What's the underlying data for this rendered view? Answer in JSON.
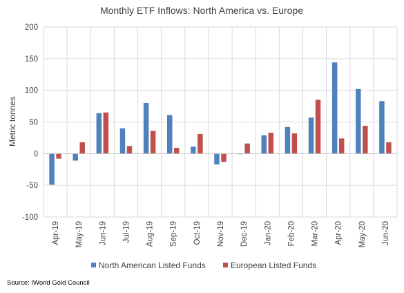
{
  "chart_data": {
    "type": "bar",
    "title": "Monthly  ETF Inflows: North America vs. Europe",
    "ylabel": "Metric tonnes",
    "xlabel": "",
    "ylim": [
      -100,
      200
    ],
    "yticks": [
      -100,
      -50,
      0,
      50,
      100,
      150,
      200
    ],
    "grid": true,
    "legend_position": "bottom",
    "categories": [
      "Apr-19",
      "May-19",
      "Jun-19",
      "Jul-19",
      "Aug-19",
      "Sep-19",
      "Oct-19",
      "Nov-19",
      "Dec-19",
      "Jan-20",
      "Feb-20",
      "Mar-20",
      "Apr-20",
      "May-20",
      "Jun-20"
    ],
    "series": [
      {
        "name": "North American Listed Funds",
        "color": "#4f81bd",
        "values": [
          -49,
          -11,
          64,
          40,
          80,
          61,
          11,
          -17,
          -1,
          29,
          42,
          57,
          144,
          102,
          83
        ]
      },
      {
        "name": "European Listed Funds",
        "color": "#c0504d",
        "values": [
          -8,
          18,
          65,
          12,
          36,
          9,
          31,
          -13,
          16,
          33,
          32,
          85,
          24,
          44,
          18
        ]
      }
    ]
  },
  "footer": {
    "source": "Source: IWorld Gold Council"
  }
}
